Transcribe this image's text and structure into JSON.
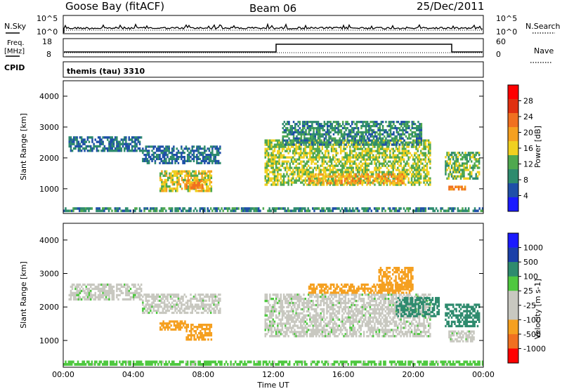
{
  "header": {
    "station": "Goose Bay (fitACF)",
    "beam": "Beam 06",
    "date": "25/Dec/2011"
  },
  "noise_panel": {
    "left_label": "N.Sky",
    "left_ticks": [
      "10^5",
      "10^0"
    ],
    "right_label": "N.Search",
    "right_ticks": [
      "10^5",
      "10^0"
    ]
  },
  "freq_panel": {
    "left_label_1": "Freq.",
    "left_label_2": "[MHz]",
    "left_ticks": [
      "18",
      "8"
    ],
    "right_label": "Nave",
    "right_ticks": [
      "60",
      "0"
    ]
  },
  "cpid_panel": {
    "label": "CPID",
    "text": "themis (tau) 3310"
  },
  "colors": {
    "power_scale": [
      "#1a1aff",
      "#1f4fa8",
      "#2e8b6e",
      "#4fa84f",
      "#f0d020",
      "#f5a020",
      "#f07020",
      "#e03010",
      "#ff0000"
    ],
    "velocity_scale": [
      "#ff0000",
      "#f07020",
      "#f5a020",
      "#c8c8c0",
      "#c8c8c0",
      "#4fc840",
      "#2e8b6e",
      "#1a3fa8",
      "#1a1aff"
    ]
  },
  "chart_data": [
    {
      "type": "heatmap",
      "name": "power",
      "ylabel": "Slant Range [km]",
      "yticks": [
        "4000",
        "3000",
        "2000",
        "1000"
      ],
      "ylim": [
        200,
        4500
      ],
      "xlim": [
        0,
        24
      ],
      "colorbar_label": "Power [dB]",
      "colorbar_ticks": [
        "28",
        "24",
        "20",
        "16",
        "12",
        "8",
        "4"
      ],
      "bands": [
        {
          "t0": 0.3,
          "t1": 4.5,
          "r0": 2200,
          "r1": 2700,
          "v": 8
        },
        {
          "t0": 4.5,
          "t1": 9.0,
          "r0": 1800,
          "r1": 2400,
          "v": 8
        },
        {
          "t0": 5.5,
          "t1": 8.5,
          "r0": 900,
          "r1": 1600,
          "v": 18
        },
        {
          "t0": 7.0,
          "t1": 8.0,
          "r0": 1000,
          "r1": 1300,
          "v": 24
        },
        {
          "t0": 11.5,
          "t1": 21.0,
          "r0": 1100,
          "r1": 2600,
          "v": 16
        },
        {
          "t0": 14.0,
          "t1": 19.5,
          "r0": 1150,
          "r1": 1500,
          "v": 22
        },
        {
          "t0": 12.5,
          "t1": 20.5,
          "r0": 2400,
          "r1": 3200,
          "v": 10
        },
        {
          "t0": 21.8,
          "t1": 23.8,
          "r0": 1300,
          "r1": 2200,
          "v": 14
        },
        {
          "t0": 22.0,
          "t1": 23.0,
          "r0": 950,
          "r1": 1100,
          "v": 24
        },
        {
          "t0": 0.0,
          "t1": 24.0,
          "r0": 250,
          "r1": 400,
          "v": 10
        }
      ]
    },
    {
      "type": "heatmap",
      "name": "velocity",
      "ylabel": "Slant Range [km]",
      "yticks": [
        "4000",
        "3000",
        "2000",
        "1000"
      ],
      "ylim": [
        200,
        4500
      ],
      "xlim": [
        0,
        24
      ],
      "xlabel": "Time UT",
      "xticks": [
        "00:00",
        "04:00",
        "08:00",
        "12:00",
        "16:00",
        "20:00",
        "00:00"
      ],
      "colorbar_label": "Velocity [m s-1]",
      "colorbar_ticks": [
        "1000",
        "500",
        "100",
        "25",
        "-25",
        "-100",
        "-500",
        "-1000"
      ],
      "bands": [
        {
          "t0": 0.3,
          "t1": 4.5,
          "r0": 2200,
          "r1": 2700,
          "v": 0
        },
        {
          "t0": 4.5,
          "t1": 9.0,
          "r0": 1800,
          "r1": 2400,
          "v": 0
        },
        {
          "t0": 5.5,
          "t1": 7.0,
          "r0": 1300,
          "r1": 1600,
          "v": -150
        },
        {
          "t0": 7.0,
          "t1": 8.5,
          "r0": 1000,
          "r1": 1500,
          "v": -150
        },
        {
          "t0": 11.5,
          "t1": 21.0,
          "r0": 1100,
          "r1": 2400,
          "v": 0
        },
        {
          "t0": 14.0,
          "t1": 20.0,
          "r0": 2400,
          "r1": 2700,
          "v": -300
        },
        {
          "t0": 18.0,
          "t1": 20.0,
          "r0": 2500,
          "r1": 3200,
          "v": -200
        },
        {
          "t0": 19.0,
          "t1": 21.5,
          "r0": 1700,
          "r1": 2300,
          "v": 150
        },
        {
          "t0": 21.8,
          "t1": 23.8,
          "r0": 1400,
          "r1": 2100,
          "v": 150
        },
        {
          "t0": 22.0,
          "t1": 23.5,
          "r0": 950,
          "r1": 1300,
          "v": 0
        },
        {
          "t0": 0.0,
          "t1": 24.0,
          "r0": 250,
          "r1": 400,
          "v": 50
        }
      ]
    }
  ]
}
